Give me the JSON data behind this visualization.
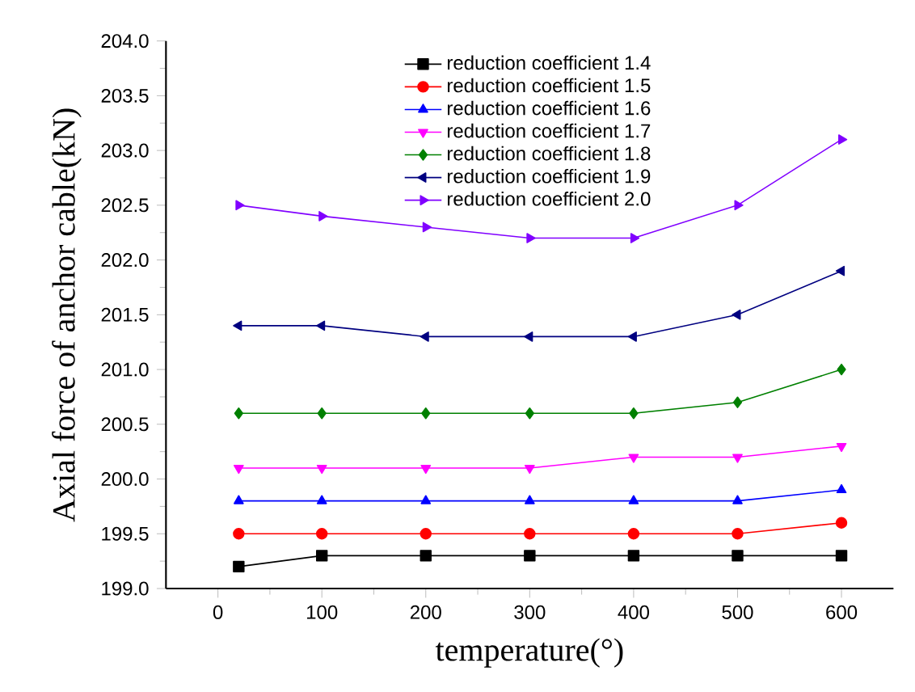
{
  "chart_data": {
    "type": "line",
    "xlabel": "temperature(°)",
    "ylabel": "Axial force of anchor cable(kN)",
    "x": [
      20,
      100,
      200,
      300,
      400,
      500,
      600
    ],
    "xlim": [
      -50,
      650
    ],
    "xticks": [
      0,
      100,
      200,
      300,
      400,
      500,
      600
    ],
    "ylim": [
      199,
      204
    ],
    "yticks": [
      {
        "value": 199,
        "label": "199.0"
      },
      {
        "value": 199.5,
        "label": "199.5"
      },
      {
        "value": 200,
        "label": "200.0"
      },
      {
        "value": 200.5,
        "label": "200.5"
      },
      {
        "value": 201,
        "label": "201.0"
      },
      {
        "value": 201.5,
        "label": "201.5"
      },
      {
        "value": 202,
        "label": "202.0"
      },
      {
        "value": 202.5,
        "label": "202.5"
      },
      {
        "value": 203,
        "label": "203.0"
      },
      {
        "value": 203.5,
        "label": "203.5"
      },
      {
        "value": 204,
        "label": "204.0"
      }
    ],
    "legend": "top",
    "grid": false,
    "series": [
      {
        "name": "reduction coefficient 1.4",
        "color": "#000000",
        "marker": "square",
        "values": [
          199.2,
          199.3,
          199.3,
          199.3,
          199.3,
          199.3,
          199.3
        ]
      },
      {
        "name": "reduction coefficient 1.5",
        "color": "#ff0000",
        "marker": "circle",
        "values": [
          199.5,
          199.5,
          199.5,
          199.5,
          199.5,
          199.5,
          199.6
        ]
      },
      {
        "name": "reduction coefficient 1.6",
        "color": "#0000ff",
        "marker": "triangle",
        "values": [
          199.8,
          199.8,
          199.8,
          199.8,
          199.8,
          199.8,
          199.9
        ]
      },
      {
        "name": "reduction coefficient 1.7",
        "color": "#ff00ff",
        "marker": "triangle-down",
        "values": [
          200.1,
          200.1,
          200.1,
          200.1,
          200.2,
          200.2,
          200.3
        ]
      },
      {
        "name": "reduction coefficient 1.8",
        "color": "#008000",
        "marker": "diamond",
        "values": [
          200.6,
          200.6,
          200.6,
          200.6,
          200.6,
          200.7,
          201.0
        ]
      },
      {
        "name": "reduction coefficient 1.9",
        "color": "#000080",
        "marker": "triangle-left",
        "values": [
          201.4,
          201.4,
          201.3,
          201.3,
          201.3,
          201.5,
          201.9
        ]
      },
      {
        "name": "reduction coefficient 2.0",
        "color": "#8000ff",
        "marker": "triangle-right",
        "values": [
          202.5,
          202.4,
          202.3,
          202.2,
          202.2,
          202.5,
          203.1
        ]
      }
    ]
  }
}
